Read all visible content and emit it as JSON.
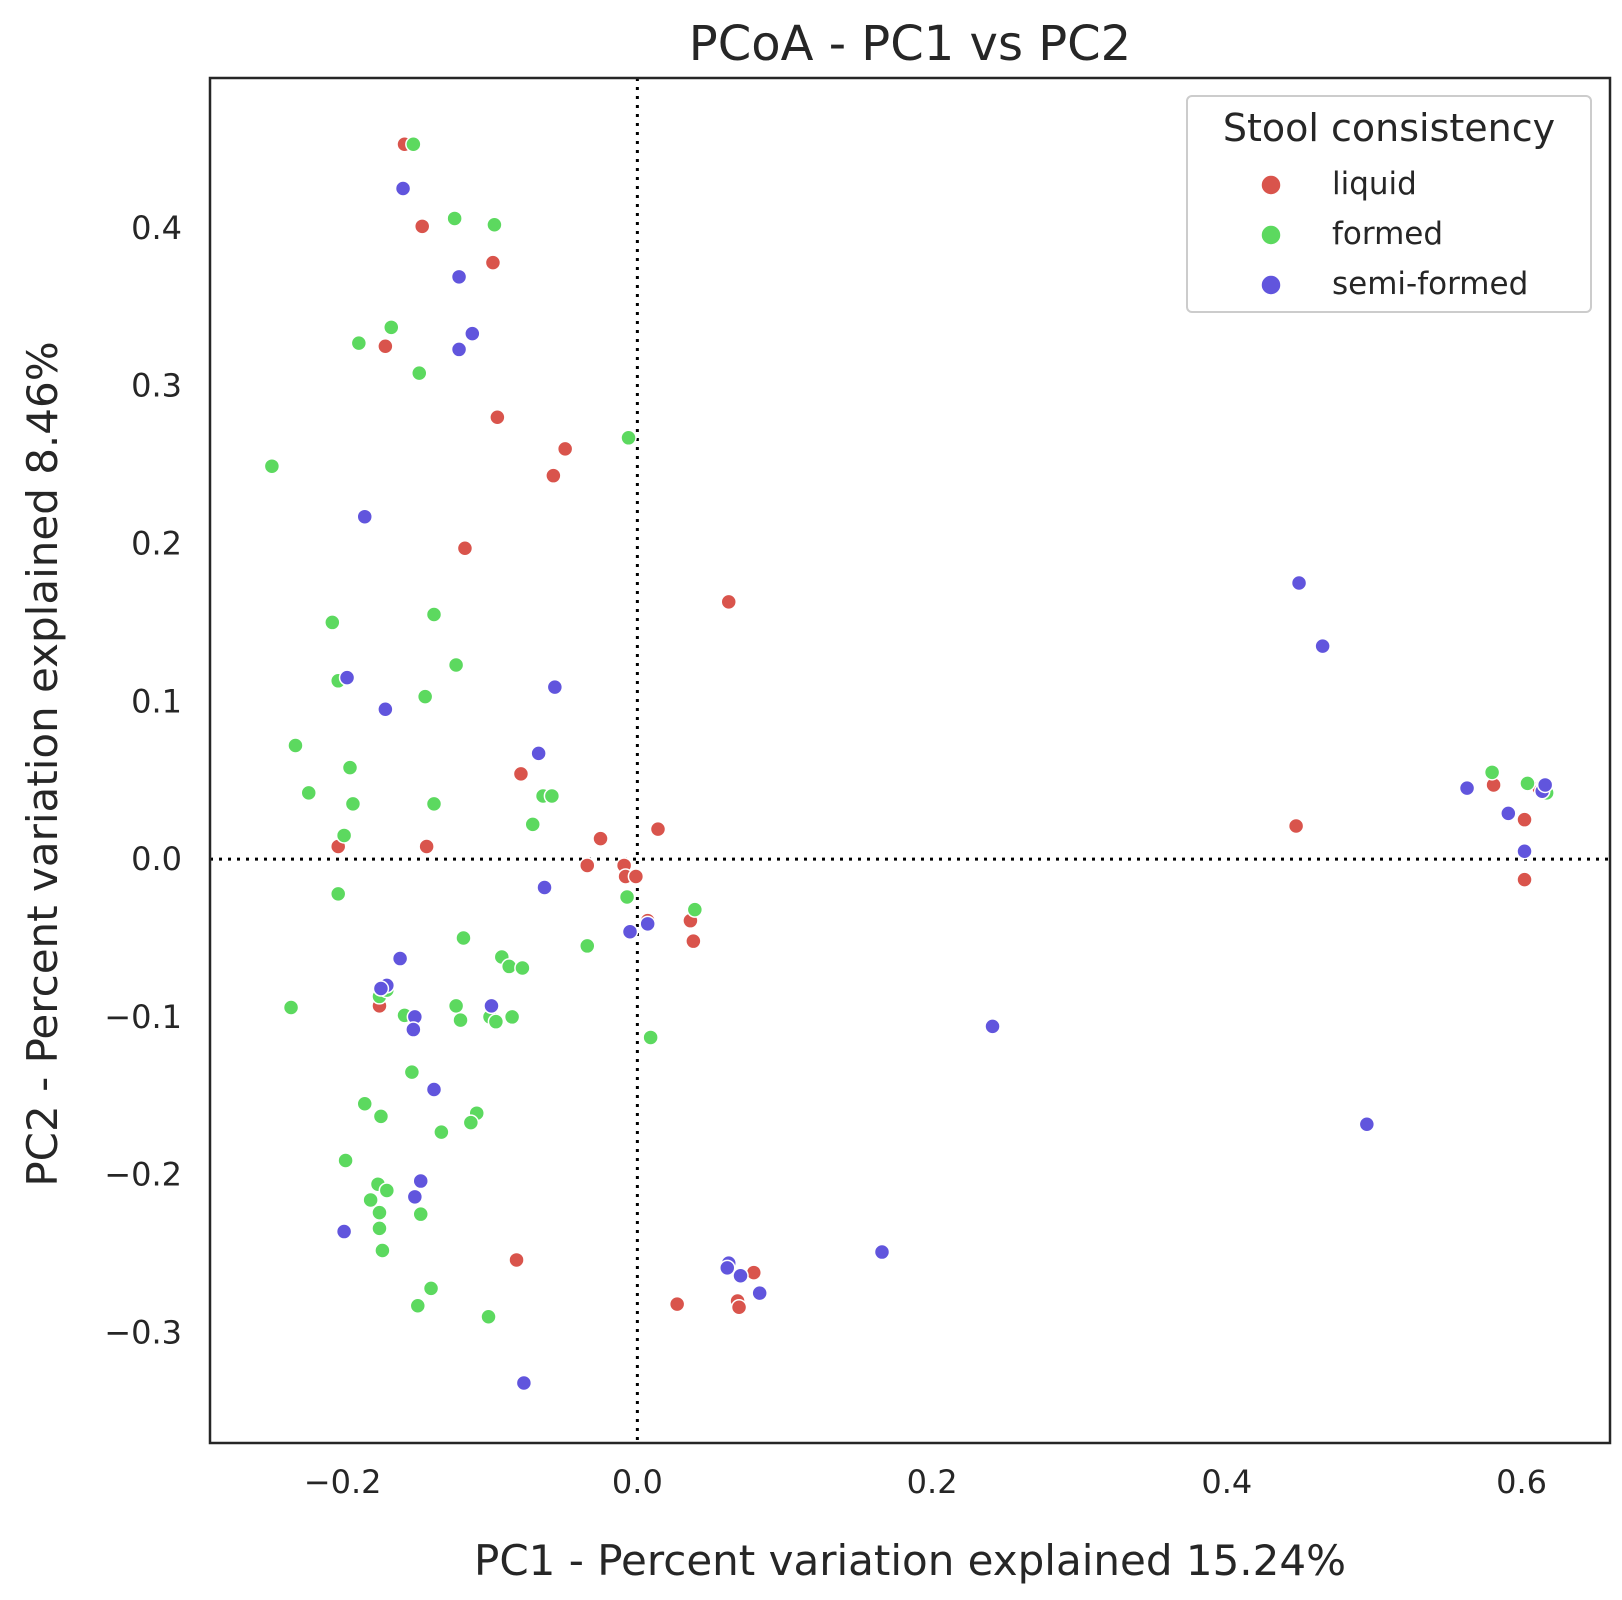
{
  "chart_data": {
    "type": "scatter",
    "title": "PCoA - PC1 vs PC2",
    "xlabel": "PC1 - Percent variation explained 15.24%",
    "ylabel": "PC2 - Percent variation explained 8.46%",
    "xlim": [
      -0.29,
      0.66
    ],
    "ylim": [
      -0.37,
      0.495
    ],
    "xticks": [
      -0.2,
      0.0,
      0.2,
      0.4,
      0.6
    ],
    "xtick_labels": [
      "−0.2",
      "0.0",
      "0.2",
      "0.4",
      "0.6"
    ],
    "yticks": [
      -0.3,
      -0.2,
      -0.1,
      0.0,
      0.1,
      0.2,
      0.3,
      0.4
    ],
    "ytick_labels": [
      "−0.3",
      "−0.2",
      "−0.1",
      "0.0",
      "0.1",
      "0.2",
      "0.3",
      "0.4"
    ],
    "reference_lines": {
      "x": 0.0,
      "y": 0.0,
      "style": "dotted"
    },
    "grid": false,
    "legend": {
      "title": "Stool consistency",
      "position": "top-right"
    },
    "series": [
      {
        "name": "liquid",
        "color": "#d9544c",
        "points": [
          [
            -0.158,
            0.453
          ],
          [
            -0.146,
            0.401
          ],
          [
            -0.098,
            0.378
          ],
          [
            -0.171,
            0.325
          ],
          [
            -0.095,
            0.28
          ],
          [
            -0.049,
            0.26
          ],
          [
            -0.057,
            0.243
          ],
          [
            -0.117,
            0.197
          ],
          [
            0.062,
            0.163
          ],
          [
            -0.079,
            0.054
          ],
          [
            -0.203,
            0.008
          ],
          [
            -0.143,
            0.008
          ],
          [
            -0.025,
            0.013
          ],
          [
            0.014,
            0.019
          ],
          [
            -0.034,
            -0.004
          ],
          [
            -0.009,
            -0.004
          ],
          [
            -0.008,
            -0.011
          ],
          [
            -0.001,
            -0.011
          ],
          [
            0.007,
            -0.039
          ],
          [
            0.036,
            -0.039
          ],
          [
            0.038,
            -0.052
          ],
          [
            -0.175,
            -0.093
          ],
          [
            -0.082,
            -0.254
          ],
          [
            0.027,
            -0.282
          ],
          [
            0.068,
            -0.28
          ],
          [
            0.069,
            -0.284
          ],
          [
            0.079,
            -0.262
          ],
          [
            0.447,
            0.021
          ],
          [
            0.581,
            0.047
          ],
          [
            0.602,
            0.025
          ],
          [
            0.602,
            -0.013
          ],
          [
            0.612,
            0.045
          ],
          [
            0.615,
            0.047
          ]
        ]
      },
      {
        "name": "formed",
        "color": "#5cd95f",
        "points": [
          [
            -0.152,
            0.453
          ],
          [
            -0.124,
            0.406
          ],
          [
            -0.097,
            0.402
          ],
          [
            -0.167,
            0.337
          ],
          [
            -0.189,
            0.327
          ],
          [
            -0.148,
            0.308
          ],
          [
            -0.248,
            0.249
          ],
          [
            -0.006,
            0.267
          ],
          [
            -0.207,
            0.15
          ],
          [
            -0.138,
            0.155
          ],
          [
            -0.203,
            0.113
          ],
          [
            -0.123,
            0.123
          ],
          [
            -0.144,
            0.103
          ],
          [
            -0.232,
            0.072
          ],
          [
            -0.195,
            0.058
          ],
          [
            -0.223,
            0.042
          ],
          [
            -0.193,
            0.035
          ],
          [
            -0.138,
            0.035
          ],
          [
            -0.064,
            0.04
          ],
          [
            -0.058,
            0.04
          ],
          [
            -0.071,
            0.022
          ],
          [
            -0.199,
            0.015
          ],
          [
            -0.203,
            -0.022
          ],
          [
            -0.007,
            -0.024
          ],
          [
            -0.034,
            -0.055
          ],
          [
            0.039,
            -0.032
          ],
          [
            -0.118,
            -0.05
          ],
          [
            -0.092,
            -0.062
          ],
          [
            -0.087,
            -0.068
          ],
          [
            -0.078,
            -0.069
          ],
          [
            -0.235,
            -0.094
          ],
          [
            -0.175,
            -0.087
          ],
          [
            -0.17,
            -0.083
          ],
          [
            -0.158,
            -0.099
          ],
          [
            -0.123,
            -0.093
          ],
          [
            -0.12,
            -0.102
          ],
          [
            -0.1,
            -0.1
          ],
          [
            -0.096,
            -0.103
          ],
          [
            -0.085,
            -0.1
          ],
          [
            0.009,
            -0.113
          ],
          [
            -0.153,
            -0.135
          ],
          [
            -0.185,
            -0.155
          ],
          [
            -0.174,
            -0.163
          ],
          [
            -0.133,
            -0.173
          ],
          [
            -0.109,
            -0.161
          ],
          [
            -0.113,
            -0.167
          ],
          [
            -0.198,
            -0.191
          ],
          [
            -0.176,
            -0.206
          ],
          [
            -0.17,
            -0.21
          ],
          [
            -0.181,
            -0.216
          ],
          [
            -0.175,
            -0.224
          ],
          [
            -0.147,
            -0.225
          ],
          [
            -0.175,
            -0.234
          ],
          [
            -0.173,
            -0.248
          ],
          [
            -0.14,
            -0.272
          ],
          [
            -0.149,
            -0.283
          ],
          [
            -0.101,
            -0.29
          ],
          [
            0.58,
            0.055
          ],
          [
            0.604,
            0.048
          ],
          [
            0.617,
            0.042
          ]
        ]
      },
      {
        "name": "semi-formed",
        "color": "#6155dd",
        "points": [
          [
            -0.159,
            0.425
          ],
          [
            -0.121,
            0.369
          ],
          [
            -0.112,
            0.333
          ],
          [
            -0.121,
            0.323
          ],
          [
            -0.185,
            0.217
          ],
          [
            -0.197,
            0.115
          ],
          [
            -0.171,
            0.095
          ],
          [
            -0.056,
            0.109
          ],
          [
            -0.067,
            0.067
          ],
          [
            -0.063,
            -0.018
          ],
          [
            -0.005,
            -0.046
          ],
          [
            0.007,
            -0.041
          ],
          [
            -0.161,
            -0.063
          ],
          [
            -0.17,
            -0.08
          ],
          [
            -0.174,
            -0.082
          ],
          [
            -0.151,
            -0.1
          ],
          [
            -0.152,
            -0.108
          ],
          [
            -0.099,
            -0.093
          ],
          [
            -0.138,
            -0.146
          ],
          [
            -0.147,
            -0.204
          ],
          [
            -0.151,
            -0.214
          ],
          [
            -0.199,
            -0.236
          ],
          [
            -0.077,
            -0.332
          ],
          [
            0.062,
            -0.256
          ],
          [
            0.061,
            -0.259
          ],
          [
            0.07,
            -0.264
          ],
          [
            0.083,
            -0.275
          ],
          [
            0.166,
            -0.249
          ],
          [
            0.241,
            -0.106
          ],
          [
            0.449,
            0.175
          ],
          [
            0.465,
            0.135
          ],
          [
            0.495,
            -0.168
          ],
          [
            0.563,
            0.045
          ],
          [
            0.591,
            0.029
          ],
          [
            0.602,
            0.005
          ],
          [
            0.614,
            0.043
          ],
          [
            0.616,
            0.047
          ]
        ]
      }
    ]
  }
}
